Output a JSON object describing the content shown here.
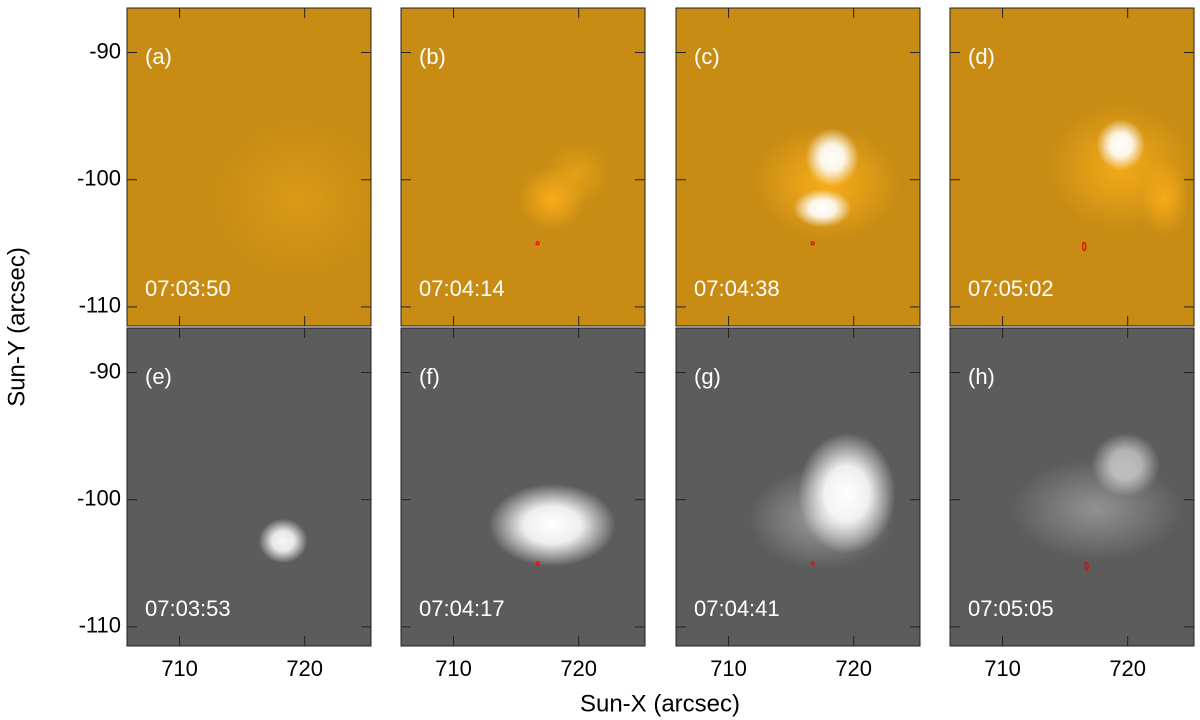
{
  "chart_data": {
    "type": "image-grid",
    "xlabel": "Sun-X (arcsec)",
    "ylabel": "Sun-Y (arcsec)",
    "xlim": [
      705.8,
      725.3
    ],
    "xticks": [
      710,
      720
    ],
    "ylim": [
      -111.5,
      -86.5
    ],
    "yticks": [
      -90,
      -100,
      -110
    ],
    "panels": [
      {
        "label": "(a)",
        "time": "07:03:50"
      },
      {
        "label": "(b)",
        "time": "07:04:14"
      },
      {
        "label": "(c)",
        "time": "07:04:38"
      },
      {
        "label": "(d)",
        "time": "07:05:02"
      },
      {
        "label": "(e)",
        "time": "07:03:53"
      },
      {
        "label": "(f)",
        "time": "07:04:17"
      },
      {
        "label": "(g)",
        "time": "07:04:41"
      },
      {
        "label": "(h)",
        "time": "07:05:05"
      }
    ]
  }
}
